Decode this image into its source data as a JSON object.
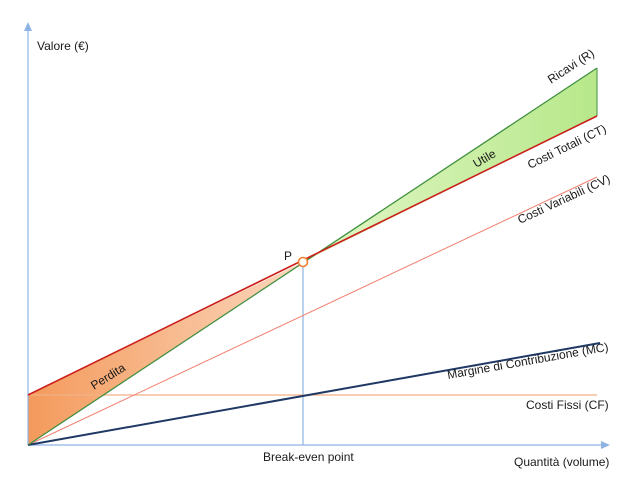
{
  "labels": {
    "y_axis": "Valore (€)",
    "x_axis": "Quantità (volume)",
    "break_even": "Break-even point",
    "point": "P",
    "ricavi": "Ricavi (R)",
    "costi_totali": "Costi Totali (CT)",
    "costi_variabili": "Costi Variabili (CV)",
    "margine": "Margine di Contribuzione (MC)",
    "costi_fissi": "Costi Fissi (CF)",
    "utile": "Utile",
    "perdita": "Perdita"
  },
  "colors": {
    "axis": "#8db3e2",
    "ricavi": "#3f8f3f",
    "costi_totali": "#cc1f1a",
    "costi_variabili": "#f08070",
    "margine": "#1f3864",
    "costi_fissi": "#f4b183",
    "utile_fill": "#c6efa0",
    "perdita_fill": "#f7b58a",
    "break_even_line": "#8db3e2"
  }
}
